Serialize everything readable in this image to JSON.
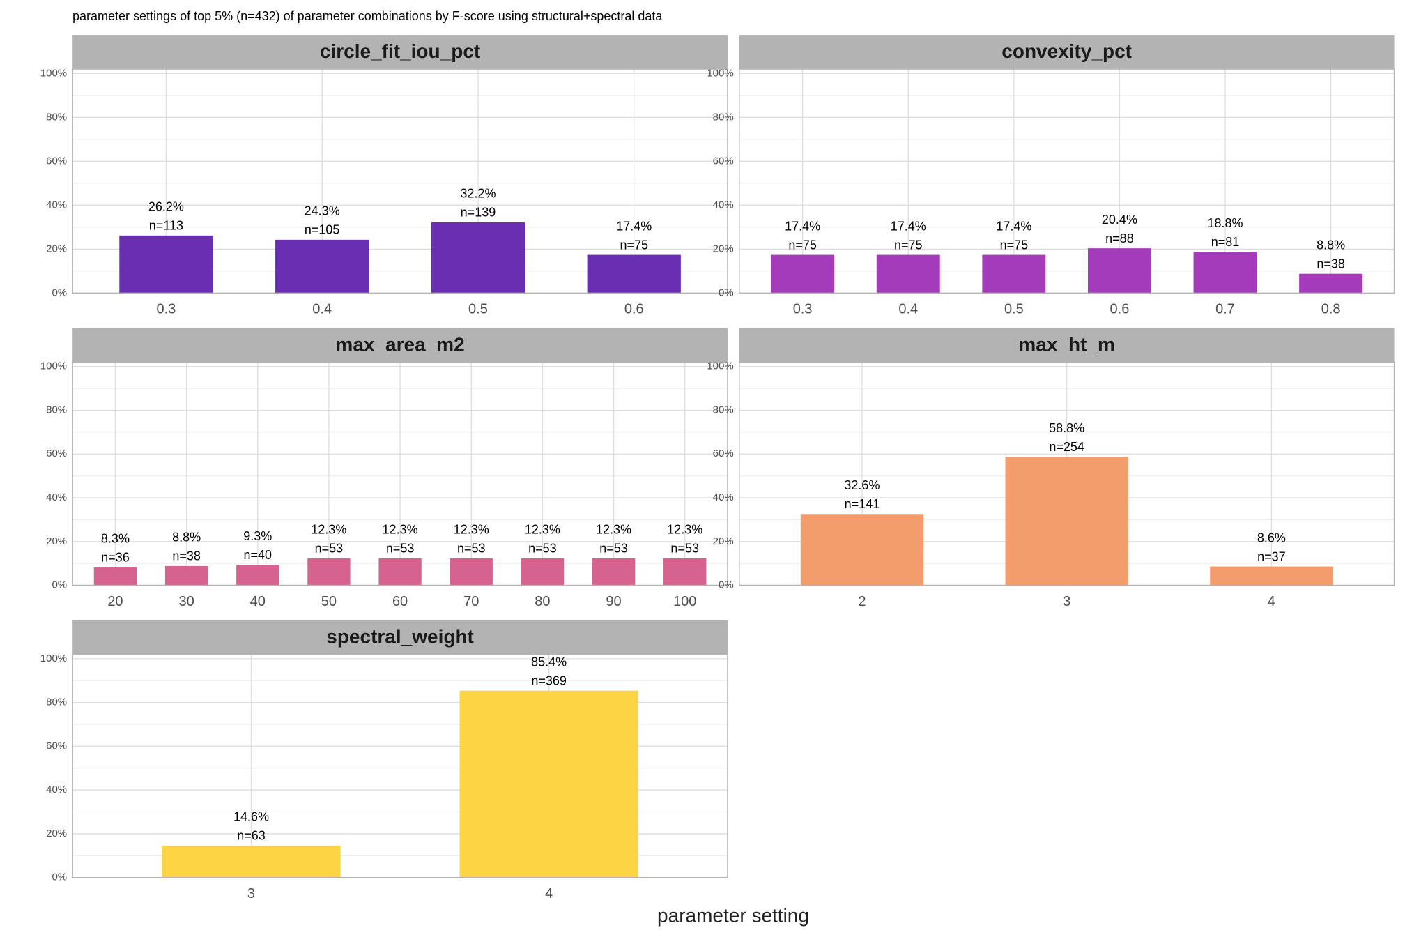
{
  "title": "parameter settings of top 5% (n=432) of parameter combinations by F-score using structural+spectral data",
  "xlabel": "parameter setting",
  "chart_data": [
    {
      "type": "bar",
      "title": "circle_fit_iou_pct",
      "color": "#6a2eb3",
      "grid": true,
      "categories": [
        "0.3",
        "0.4",
        "0.5",
        "0.6"
      ],
      "values": [
        26.2,
        24.3,
        32.2,
        17.4
      ],
      "value_labels": [
        "26.2%",
        "24.3%",
        "32.2%",
        "17.4%"
      ],
      "count_labels": [
        "n=113",
        "n=105",
        "n=139",
        "n=75"
      ],
      "ylim": [
        0,
        102
      ],
      "yticks": [
        {
          "value": 0,
          "label": "0%"
        },
        {
          "value": 20,
          "label": "20%"
        },
        {
          "value": 40,
          "label": "40%"
        },
        {
          "value": 60,
          "label": "60%"
        },
        {
          "value": 80,
          "label": "80%"
        },
        {
          "value": 100,
          "label": "100%"
        }
      ]
    },
    {
      "type": "bar",
      "title": "convexity_pct",
      "color": "#a43bbb",
      "grid": true,
      "categories": [
        "0.3",
        "0.4",
        "0.5",
        "0.6",
        "0.7",
        "0.8"
      ],
      "values": [
        17.4,
        17.4,
        17.4,
        20.4,
        18.8,
        8.8
      ],
      "value_labels": [
        "17.4%",
        "17.4%",
        "17.4%",
        "20.4%",
        "18.8%",
        "8.8%"
      ],
      "count_labels": [
        "n=75",
        "n=75",
        "n=75",
        "n=88",
        "n=81",
        "n=38"
      ],
      "ylim": [
        0,
        102
      ],
      "yticks": [
        {
          "value": 0,
          "label": "0%"
        },
        {
          "value": 20,
          "label": "20%"
        },
        {
          "value": 40,
          "label": "40%"
        },
        {
          "value": 60,
          "label": "60%"
        },
        {
          "value": 80,
          "label": "80%"
        },
        {
          "value": 100,
          "label": "100%"
        }
      ]
    },
    {
      "type": "bar",
      "title": "max_area_m2",
      "color": "#d6628f",
      "grid": true,
      "categories": [
        "20",
        "30",
        "40",
        "50",
        "60",
        "70",
        "80",
        "90",
        "100"
      ],
      "values": [
        8.3,
        8.8,
        9.3,
        12.3,
        12.3,
        12.3,
        12.3,
        12.3,
        12.3
      ],
      "value_labels": [
        "8.3%",
        "8.8%",
        "9.3%",
        "12.3%",
        "12.3%",
        "12.3%",
        "12.3%",
        "12.3%",
        "12.3%"
      ],
      "count_labels": [
        "n=36",
        "n=38",
        "n=40",
        "n=53",
        "n=53",
        "n=53",
        "n=53",
        "n=53",
        "n=53"
      ],
      "ylim": [
        0,
        102
      ],
      "yticks": [
        {
          "value": 0,
          "label": "0%"
        },
        {
          "value": 20,
          "label": "20%"
        },
        {
          "value": 40,
          "label": "40%"
        },
        {
          "value": 60,
          "label": "60%"
        },
        {
          "value": 80,
          "label": "80%"
        },
        {
          "value": 100,
          "label": "100%"
        }
      ]
    },
    {
      "type": "bar",
      "title": "max_ht_m",
      "color": "#f39c6c",
      "grid": true,
      "categories": [
        "2",
        "3",
        "4"
      ],
      "values": [
        32.6,
        58.8,
        8.6
      ],
      "value_labels": [
        "32.6%",
        "58.8%",
        "8.6%"
      ],
      "count_labels": [
        "n=141",
        "n=254",
        "n=37"
      ],
      "ylim": [
        0,
        102
      ],
      "yticks": [
        {
          "value": 0,
          "label": "0%"
        },
        {
          "value": 20,
          "label": "20%"
        },
        {
          "value": 40,
          "label": "40%"
        },
        {
          "value": 60,
          "label": "60%"
        },
        {
          "value": 80,
          "label": "80%"
        },
        {
          "value": 100,
          "label": "100%"
        }
      ]
    },
    {
      "type": "bar",
      "title": "spectral_weight",
      "color": "#fcd444",
      "grid": true,
      "categories": [
        "3",
        "4"
      ],
      "values": [
        14.6,
        85.4
      ],
      "value_labels": [
        "14.6%",
        "85.4%"
      ],
      "count_labels": [
        "n=63",
        "n=369"
      ],
      "ylim": [
        0,
        102
      ],
      "yticks": [
        {
          "value": 0,
          "label": "0%"
        },
        {
          "value": 20,
          "label": "20%"
        },
        {
          "value": 40,
          "label": "40%"
        },
        {
          "value": 60,
          "label": "60%"
        },
        {
          "value": 80,
          "label": "80%"
        },
        {
          "value": 100,
          "label": "100%"
        }
      ]
    }
  ]
}
